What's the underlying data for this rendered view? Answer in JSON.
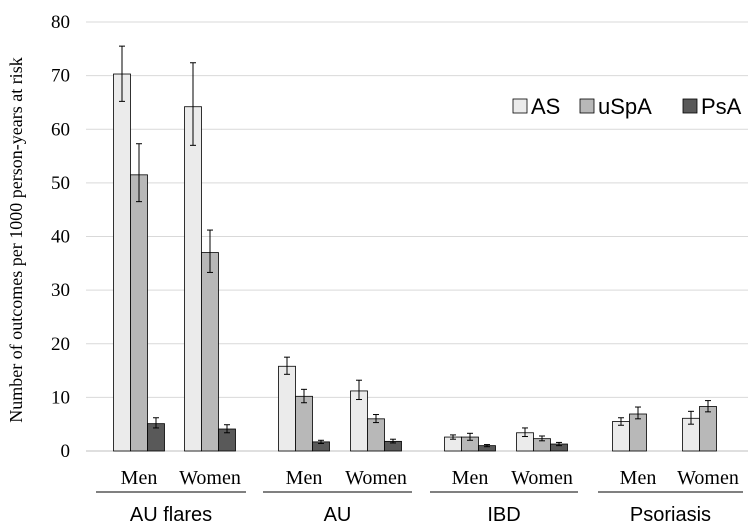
{
  "chart_data": {
    "type": "bar",
    "ylabel": "Number of outcomes per 1000 person-years at risk",
    "ylim": [
      0,
      80
    ],
    "yticks": [
      0,
      10,
      20,
      30,
      40,
      50,
      60,
      70,
      80
    ],
    "grid": true,
    "legend_position": "top-right",
    "groups": [
      {
        "label": "AU flares",
        "categories": [
          "Men",
          "Women"
        ]
      },
      {
        "label": "AU",
        "categories": [
          "Men",
          "Women"
        ]
      },
      {
        "label": "IBD",
        "categories": [
          "Men",
          "Women"
        ]
      },
      {
        "label": "Psoriasis",
        "categories": [
          "Men",
          "Women"
        ]
      }
    ],
    "series": [
      {
        "name": "AS",
        "color": "#ebebeb",
        "values": [
          70.3,
          64.2,
          15.8,
          11.2,
          2.6,
          3.4,
          5.5,
          6.1
        ],
        "err_low": [
          65.2,
          57.0,
          14.3,
          9.6,
          2.2,
          2.7,
          4.8,
          5.0
        ],
        "err_high": [
          75.5,
          72.4,
          17.5,
          13.2,
          3.0,
          4.3,
          6.2,
          7.4
        ]
      },
      {
        "name": "uSpA",
        "color": "#b8b8b8",
        "values": [
          51.5,
          37.0,
          10.2,
          6.0,
          2.6,
          2.3,
          6.9,
          8.3
        ],
        "err_low": [
          46.5,
          33.3,
          9.0,
          5.3,
          2.0,
          1.9,
          6.0,
          7.3
        ],
        "err_high": [
          57.3,
          41.2,
          11.5,
          6.8,
          3.3,
          2.8,
          8.2,
          9.4
        ]
      },
      {
        "name": "PsA",
        "color": "#595959",
        "values": [
          5.1,
          4.1,
          1.7,
          1.8,
          1.0,
          1.3,
          null,
          null
        ],
        "err_low": [
          4.3,
          3.4,
          1.4,
          1.5,
          0.8,
          1.0,
          null,
          null
        ],
        "err_high": [
          6.2,
          4.9,
          2.0,
          2.2,
          1.2,
          1.6,
          null,
          null
        ]
      }
    ]
  }
}
